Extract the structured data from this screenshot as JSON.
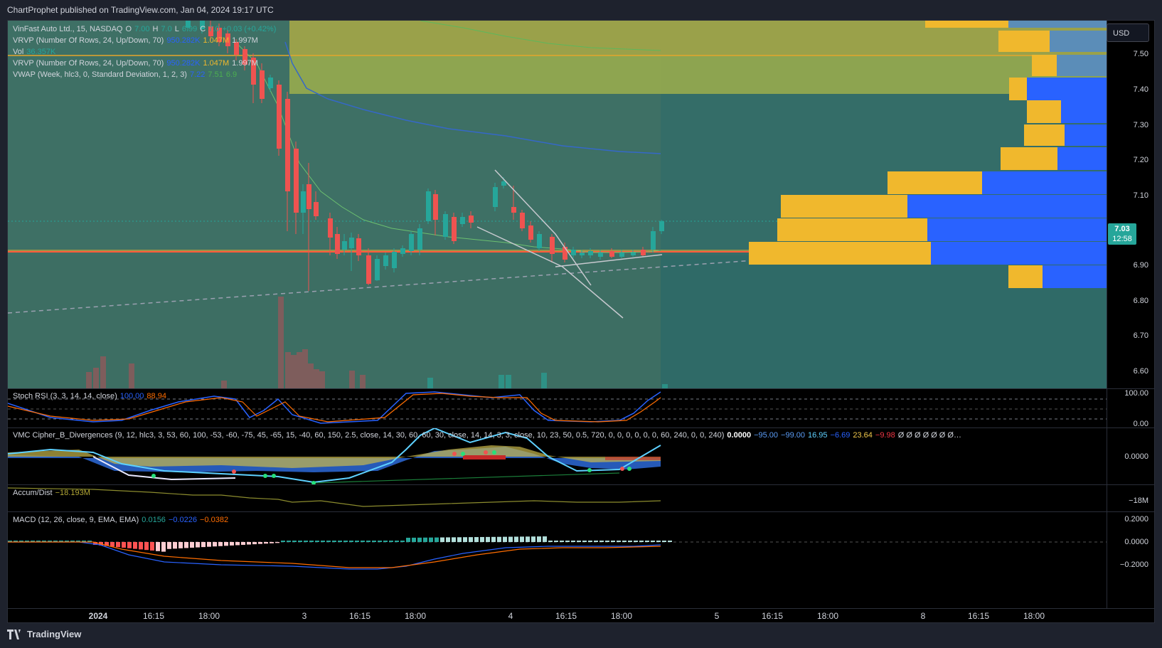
{
  "header": {
    "publish_text": "ChartProphet published on TradingView.com, Jan 04, 2024 19:17 UTC"
  },
  "main_legend": {
    "symbol": "VinFast Auto Ltd., 15, NASDAQ",
    "o_label": "O",
    "o_value": "7.00",
    "h_label": "H",
    "h_value": "7.0",
    "l_label": "L",
    "l_value": "6.99",
    "c_label": "C",
    "c_value": "7.0",
    "change": "+0.03 (+0.42%)",
    "vrvp1": "VRVP (Number Of Rows, 24, Up/Down, 70)",
    "vrvp1_v1": "950.282K",
    "vrvp1_v2": "1.047M",
    "vrvp1_v3": "1.997M",
    "vol_label": "Vol",
    "vol_value": "36.357K",
    "vrvp2": "VRVP (Number Of Rows, 24, Up/Down, 70)",
    "vrvp2_v1": "950.282K",
    "vrvp2_v2": "1.047M",
    "vrvp2_v3": "1.997M",
    "vwap": "VWAP (Week, hlc3, 0, Standard Deviation, 1, 2, 3)",
    "vwap_v1": "7.22",
    "vwap_v2": "7.51",
    "vwap_v3": "6.9"
  },
  "currency_button": "USD",
  "last_price": {
    "price": "7.03",
    "countdown": "12:58"
  },
  "price_axis": [
    "7.50",
    "7.40",
    "7.30",
    "7.20",
    "7.10",
    "6.90",
    "6.80",
    "6.70",
    "6.60"
  ],
  "stoch": {
    "label": "Stoch RSI (3, 3, 14, 14, close)",
    "k": "100.00",
    "d": "88.94",
    "axis": [
      "100.00",
      "0.00"
    ]
  },
  "vmc": {
    "label": "VMC Cipher_B_Divergences (9, 12, hlc3, 3, 53, 60, 100, -53, -60, -75, 45, -65, 15, -40, 60, 150, 2.5, close, 14, 30, 60, 60, 30, close, 14, 14, 3, 3, close, 10, 23, 50, 0.5, 720, 0, 0, 0, 0, 0, 0, 60, 240, 0, 0, 240)",
    "values": [
      {
        "text": "0.0000",
        "color": "#ffffff"
      },
      {
        "text": "−95.00",
        "color": "#5b9cf6"
      },
      {
        "text": "−99.00",
        "color": "#5b9cf6"
      },
      {
        "text": "16.95",
        "color": "#5ed1ff"
      },
      {
        "text": "−6.69",
        "color": "#2962ff"
      },
      {
        "text": "23.64",
        "color": "#f2c94c"
      },
      {
        "text": "−9.98",
        "color": "#f23645"
      },
      {
        "text": "Ø Ø Ø Ø Ø Ø Ø…",
        "color": "#d1d4dc"
      }
    ],
    "axis": [
      "0.0000"
    ]
  },
  "accum": {
    "label": "Accum/Dist",
    "value": "−18.193M",
    "axis": [
      "−18M"
    ]
  },
  "macd": {
    "label": "MACD (12, 26, close, 9, EMA, EMA)",
    "hist": "0.0156",
    "macd": "−0.0226",
    "signal": "−0.0382",
    "axis": [
      "0.2000",
      "0.0000",
      "−0.2000"
    ]
  },
  "time_axis": [
    "2024",
    "16:15",
    "18:00",
    "3",
    "16:15",
    "18:00",
    "4",
    "16:15",
    "18:00",
    "5",
    "16:15",
    "18:00",
    "8",
    "16:15",
    "18:00"
  ],
  "footer": {
    "brand": "TradingView"
  },
  "colors": {
    "up": "#26a69a",
    "down": "#ef5350",
    "vwap": "#2962ff",
    "profile_up": "#f0b82d",
    "profile_down": "#2962ff",
    "poc": "#f23645"
  }
}
